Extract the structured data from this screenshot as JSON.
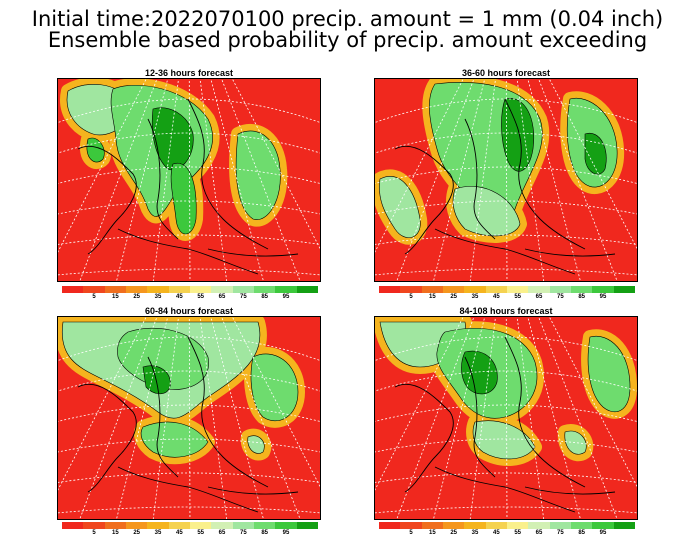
{
  "title": {
    "line1": "Initial time:2022070100 precip. amount = 1 mm (0.04 inch)",
    "line2": "Ensemble based probability of precip. amount exceeding"
  },
  "panels": [
    {
      "label": "12-36 hours forecast"
    },
    {
      "label": "36-60 hours forecast"
    },
    {
      "label": "60-84 hours forecast"
    },
    {
      "label": "84-108 hours forecast"
    }
  ],
  "colorbar": {
    "colors": [
      "#f0281e",
      "#f0461e",
      "#f06e1e",
      "#f5961e",
      "#f5b41e",
      "#f5d250",
      "#faf08c",
      "#d2f0b4",
      "#a0e6a0",
      "#6edc6e",
      "#3cc83c",
      "#14a014"
    ],
    "labels": [
      "5",
      "15",
      "25",
      "35",
      "45",
      "55",
      "65",
      "75",
      "85",
      "95"
    ]
  }
}
